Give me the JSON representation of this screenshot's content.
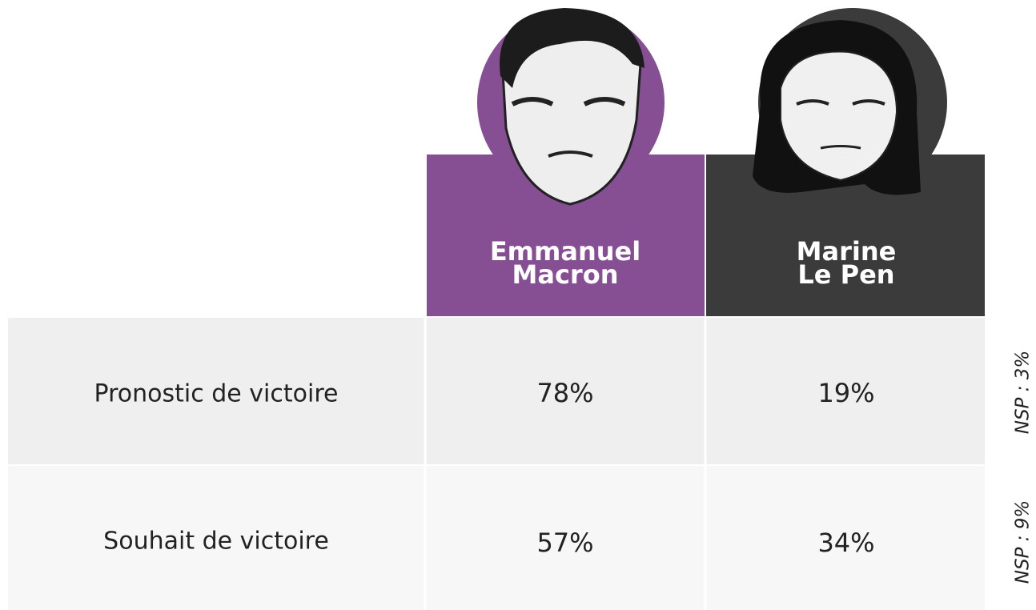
{
  "table": {
    "columns": [
      [
        "Emmanuel",
        "Macron"
      ],
      [
        "Marine",
        "Le Pen"
      ]
    ],
    "rows": [
      [
        "Pronostic de victoire",
        "78%",
        "19%"
      ],
      [
        "Souhait de victoire",
        "57%",
        "34%"
      ]
    ],
    "notes": [
      "NSP : 3%",
      "NSP : 9%"
    ]
  }
}
